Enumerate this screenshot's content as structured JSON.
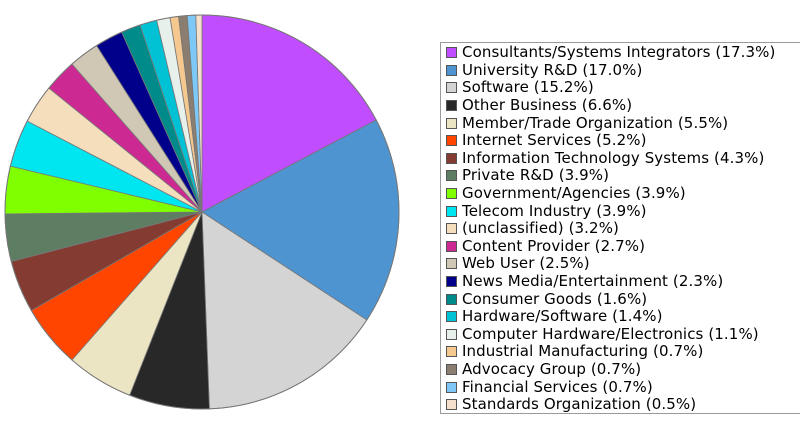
{
  "chart_data": {
    "type": "pie",
    "start_angle_deg": 0,
    "direction": "clockwise",
    "legend_position": "right",
    "slices": [
      {
        "label": "Consultants/Systems Integrators (17.3%)",
        "value": 17.3,
        "color": "#c04dff"
      },
      {
        "label": "University R&D (17.0%)",
        "value": 17.0,
        "color": "#4d94d0"
      },
      {
        "label": "Software (15.2%)",
        "value": 15.2,
        "color": "#d4d4d4"
      },
      {
        "label": "Other Business (6.6%)",
        "value": 6.6,
        "color": "#282828"
      },
      {
        "label": "Member/Trade Organization (5.5%)",
        "value": 5.5,
        "color": "#ece5c4"
      },
      {
        "label": "Internet Services (5.2%)",
        "value": 5.2,
        "color": "#ff4500"
      },
      {
        "label": "Information Technology Systems (4.3%)",
        "value": 4.3,
        "color": "#843c32"
      },
      {
        "label": "Private R&D (3.9%)",
        "value": 3.9,
        "color": "#5e7e64"
      },
      {
        "label": "Government/Agencies (3.9%)",
        "value": 3.9,
        "color": "#80ff00"
      },
      {
        "label": "Telecom Industry (3.9%)",
        "value": 3.9,
        "color": "#00e6f0"
      },
      {
        "label": "(unclassified) (3.2%)",
        "value": 3.2,
        "color": "#f5debc"
      },
      {
        "label": "Content Provider (2.7%)",
        "value": 2.7,
        "color": "#cc2a92"
      },
      {
        "label": "Web User (2.5%)",
        "value": 2.5,
        "color": "#d0c8b4"
      },
      {
        "label": "News Media/Entertainment (2.3%)",
        "value": 2.3,
        "color": "#00008b"
      },
      {
        "label": "Consumer Goods (1.6%)",
        "value": 1.6,
        "color": "#008b8b"
      },
      {
        "label": "Hardware/Software (1.4%)",
        "value": 1.4,
        "color": "#00c2d4"
      },
      {
        "label": "Computer Hardware/Electronics (1.1%)",
        "value": 1.1,
        "color": "#e8f0ec"
      },
      {
        "label": "Industrial Manufacturing (0.7%)",
        "value": 0.7,
        "color": "#f5c890"
      },
      {
        "label": "Advocacy Group (0.7%)",
        "value": 0.7,
        "color": "#8b7e70"
      },
      {
        "label": "Financial Services (0.7%)",
        "value": 0.7,
        "color": "#7ec8f8"
      },
      {
        "label": "Standards Organization (0.5%)",
        "value": 0.5,
        "color": "#f5e0cc"
      }
    ]
  }
}
